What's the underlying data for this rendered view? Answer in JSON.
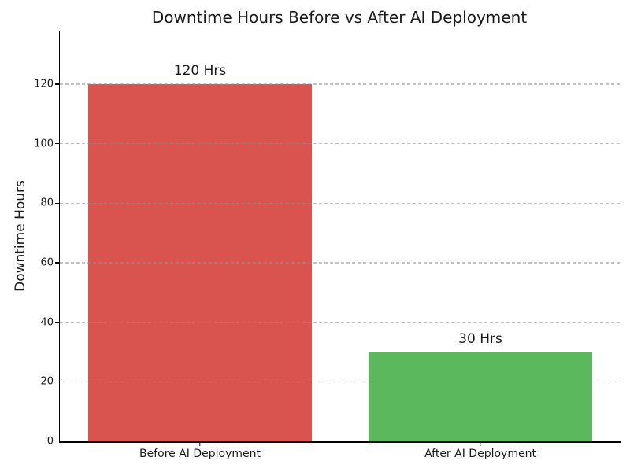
{
  "chart_data": {
    "type": "bar",
    "title": "Downtime Hours Before vs After AI Deployment",
    "ylabel": "Downtime Hours",
    "xlabel": "",
    "categories": [
      "Before AI Deployment",
      "After AI Deployment"
    ],
    "values": [
      120,
      30
    ],
    "bar_value_labels": [
      "120 Hrs",
      "30 Hrs"
    ],
    "bar_colors": [
      "#d9534f",
      "#5cb85c"
    ],
    "ylim": [
      0,
      138
    ],
    "yticks": [
      0,
      20,
      40,
      60,
      80,
      100,
      120
    ],
    "bar_width_fraction": 0.8,
    "grid": {
      "axis": "y",
      "style": "dashed",
      "color": "#c0c0c0",
      "drawn_over_bars": true
    },
    "legend_position": "none",
    "background_color": "#ffffff",
    "text_color": "#1a1a1a"
  }
}
